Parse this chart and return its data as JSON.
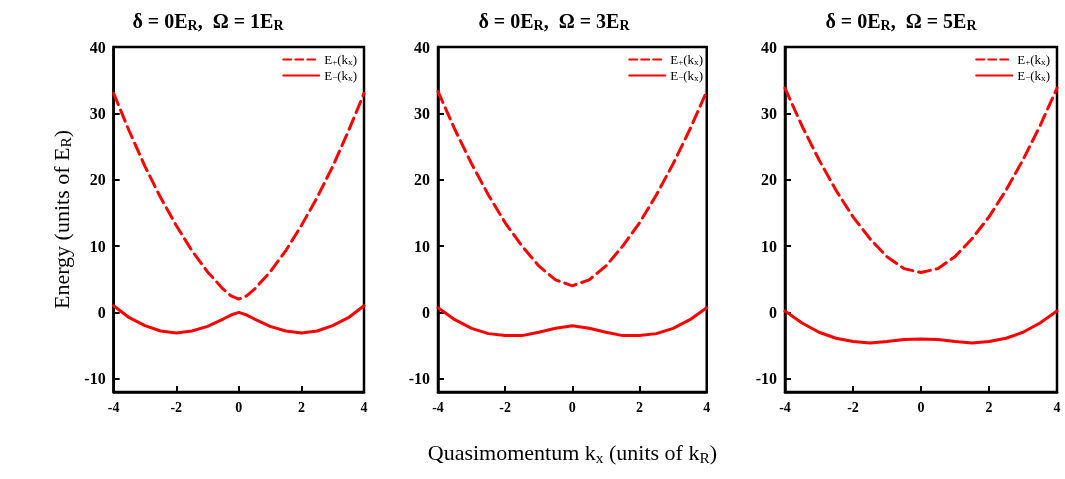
{
  "chart_data": [
    {
      "type": "line",
      "title": "δ = 0E$_{R}$,  Ω = 1E$_{R}$",
      "ylabel": "Energy (units of E$_{R}$)",
      "x": [
        -4,
        -3.5,
        -3,
        -2.5,
        -2,
        -1.5,
        -1,
        -0.5,
        -0.25,
        0,
        0.25,
        0.5,
        1,
        1.5,
        2,
        2.5,
        3,
        3.5,
        4
      ],
      "xlim": [
        -4,
        4
      ],
      "xticks": [
        -4,
        -2,
        0,
        2,
        4
      ],
      "ylim": [
        -12,
        40
      ],
      "yticks": [
        -10,
        0,
        10,
        20,
        30,
        40
      ],
      "grid": false,
      "legend": "top right",
      "marker": "none",
      "series": [
        {
          "name": "E$_{+}$(k$_{x}$)",
          "color": "#ff0000",
          "line_style": "dashed",
          "values": [
            33.0,
            27.3,
            22.0,
            17.3,
            13.1,
            9.3,
            6.1,
            3.5,
            2.5,
            2.0,
            2.5,
            3.5,
            6.1,
            9.3,
            13.1,
            17.3,
            22.0,
            27.3,
            33.0
          ]
        },
        {
          "name": "E$_{−}$(k$_{x}$)",
          "color": "#ff0000",
          "line_style": "solid",
          "values": [
            1.0,
            -0.8,
            -2.0,
            -2.8,
            -3.1,
            -2.8,
            -2.1,
            -1.0,
            -0.4,
            0.0,
            -0.4,
            -1.0,
            -2.1,
            -2.8,
            -3.1,
            -2.8,
            -2.0,
            -0.8,
            1.0
          ]
        }
      ]
    },
    {
      "type": "line",
      "title": "δ = 0E$_{R}$,  Ω = 3E$_{R}$",
      "xlabel": "Quasimomentum k$_{x}$ (units of k$_{R}$)",
      "x": [
        -4,
        -3.5,
        -3,
        -2.5,
        -2,
        -1.5,
        -1,
        -0.5,
        0,
        0.5,
        1,
        1.5,
        2,
        2.5,
        3,
        3.5,
        4
      ],
      "xlim": [
        -4,
        4
      ],
      "xticks": [
        -4,
        -2,
        0,
        2,
        4
      ],
      "ylim": [
        -12,
        40
      ],
      "yticks": [
        -10,
        0,
        10,
        20,
        30,
        40
      ],
      "grid": false,
      "legend": "top right",
      "marker": "none",
      "series": [
        {
          "name": "E$_{+}$(k$_{x}$)",
          "color": "#ff0000",
          "line_style": "dashed",
          "values": [
            33.3,
            27.6,
            22.4,
            17.7,
            13.5,
            10.0,
            7.0,
            4.9,
            4.0,
            4.9,
            7.0,
            10.0,
            13.5,
            17.7,
            22.4,
            27.6,
            33.3
          ]
        },
        {
          "name": "E$_{−}$(k$_{x}$)",
          "color": "#ff0000",
          "line_style": "solid",
          "values": [
            0.7,
            -1.1,
            -2.4,
            -3.2,
            -3.5,
            -3.5,
            -3.0,
            -2.4,
            -2.0,
            -2.4,
            -3.0,
            -3.5,
            -3.5,
            -3.2,
            -2.4,
            -1.1,
            0.7
          ]
        }
      ]
    },
    {
      "type": "line",
      "title": "δ = 0E$_{R}$,  Ω = 5E$_{R}$",
      "x": [
        -4,
        -3.5,
        -3,
        -2.5,
        -2,
        -1.5,
        -1,
        -0.5,
        0,
        0.5,
        1,
        1.5,
        2,
        2.5,
        3,
        3.5,
        4
      ],
      "xlim": [
        -4,
        4
      ],
      "xticks": [
        -4,
        -2,
        0,
        2,
        4
      ],
      "ylim": [
        -12,
        40
      ],
      "yticks": [
        -10,
        0,
        10,
        20,
        30,
        40
      ],
      "grid": false,
      "legend": "top right",
      "marker": "none",
      "series": [
        {
          "name": "E$_{+}$(k$_{x}$)",
          "color": "#ff0000",
          "line_style": "dashed",
          "values": [
            33.8,
            28.1,
            23.0,
            18.4,
            14.4,
            11.1,
            8.4,
            6.6,
            6.0,
            6.6,
            8.4,
            11.1,
            14.4,
            18.4,
            23.0,
            28.1,
            33.8
          ]
        },
        {
          "name": "E$_{−}$(k$_{x}$)",
          "color": "#ff0000",
          "line_style": "solid",
          "values": [
            0.2,
            -1.6,
            -3.0,
            -3.9,
            -4.4,
            -4.6,
            -4.4,
            -4.1,
            -4.0,
            -4.1,
            -4.4,
            -4.6,
            -4.4,
            -3.9,
            -3.0,
            -1.6,
            0.2
          ]
        }
      ]
    }
  ]
}
